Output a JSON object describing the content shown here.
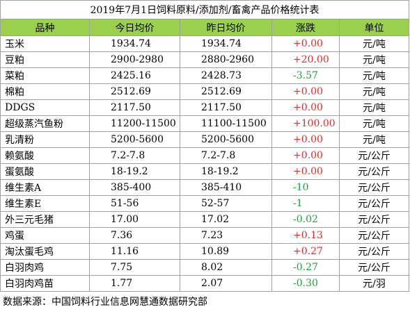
{
  "title": "2019年7月1日饲料原料/添加剂/畜禽产品价格统计表",
  "header": [
    "品种",
    "今日均价",
    "昨日均价",
    "涨跌",
    "单位"
  ],
  "rows": [
    [
      "玉米",
      "1934.74",
      "1934.74",
      "+0.00",
      "元/吨"
    ],
    [
      "豆粕",
      "2900-2980",
      "2880-2960",
      "+20.00",
      "元/吨"
    ],
    [
      "菜粕",
      "2425.16",
      "2428.73",
      "-3.57",
      "元/吨"
    ],
    [
      "棉粕",
      "2512.69",
      "2512.69",
      "+0.00",
      "元/吨"
    ],
    [
      "DDGS",
      "2117.50",
      "2117.50",
      "+0.00",
      "元/吨"
    ],
    [
      "超级蒸汽鱼粉",
      "11200-11500",
      "11100-11500",
      "+100.00",
      "元/吨"
    ],
    [
      "乳清粉",
      "5200-5600",
      "5200-5600",
      "+0.00",
      "元/吨"
    ],
    [
      "赖氨酸",
      "7.2-7.8",
      "7.2-7.8",
      "+0.00",
      "元/公斤"
    ],
    [
      "蛋氨酸",
      "18-19.2",
      "18-19.2",
      "+0.00",
      "元/公斤"
    ],
    [
      "维生素A",
      "385-400",
      "385-410",
      "-10",
      "元/公斤"
    ],
    [
      "维生素E",
      "51-56",
      "52-57",
      "-1",
      "元/公斤"
    ],
    [
      "外三元毛猪",
      "17.00",
      "17.02",
      "-0.02",
      "元/公斤"
    ],
    [
      "鸡蛋",
      "7.36",
      "7.23",
      "+0.13",
      "元/公斤"
    ],
    [
      "淘汰蛋毛鸡",
      "11.16",
      "10.89",
      "+0.27",
      "元/公斤"
    ],
    [
      "白羽肉鸡",
      "7.75",
      "8.02",
      "-0.27",
      "元/公斤"
    ],
    [
      "白羽肉鸡苗",
      "1.77",
      "2.07",
      "-0.30",
      "元/羽"
    ]
  ],
  "footer": "数据来源：中国饲料行业信息网慧通数据研究部"
}
